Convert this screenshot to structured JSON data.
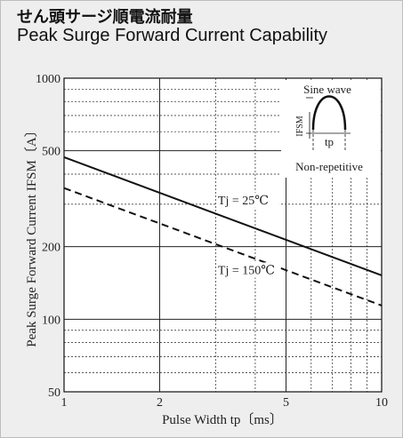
{
  "header": {
    "title_jp": "せん頭サージ順電流耐量",
    "title_en": "Peak Surge Forward Current Capability"
  },
  "chart_data": {
    "type": "line",
    "title": "Peak Surge Forward Current Capability",
    "xlabel": "Pulse Width tp〔ms〕",
    "ylabel": "Peak Surge Forward Current IFSM〔A〕",
    "xscale": "log",
    "yscale": "log",
    "xlim": [
      1,
      10
    ],
    "ylim": [
      50,
      1000
    ],
    "x_ticks": [
      1,
      2,
      5,
      10
    ],
    "y_ticks": [
      50,
      100,
      200,
      500,
      1000
    ],
    "grid": true,
    "series": [
      {
        "name": "Tj = 25℃",
        "x": [
          1,
          10
        ],
        "y": [
          470,
          152
        ],
        "style": "solid",
        "color": "#111111"
      },
      {
        "name": "Tj = 150℃",
        "x": [
          1,
          10
        ],
        "y": [
          350,
          114
        ],
        "style": "dashed",
        "color": "#111111"
      }
    ],
    "inset": {
      "title": "Sine wave",
      "ylabel": "IFSM",
      "xlabel": "tp",
      "caption": "Non-repetitive"
    }
  },
  "colors": {
    "background": "#eeeeee",
    "plot_background": "#ffffff",
    "line": "#111111",
    "grid": "#222222"
  }
}
